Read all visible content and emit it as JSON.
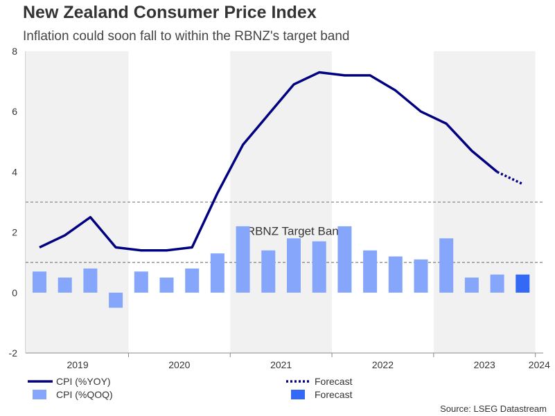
{
  "title": "New Zealand Consumer Price Index",
  "subtitle": "Inflation could soon fall to within the RBNZ's target band",
  "source": "Source: LSEG Datastream",
  "chart_data": {
    "type": "bar+line",
    "quarters": 20,
    "years": [
      "2019",
      "2020",
      "2021",
      "2022",
      "2023",
      "2024"
    ],
    "ylim": [
      -2,
      8
    ],
    "yticks": [
      "8",
      "6",
      "4",
      "2",
      "0",
      "-2"
    ],
    "target_band": {
      "label": "RBNZ Target Band",
      "low": 1,
      "high": 3
    },
    "series": [
      {
        "name": "CPI (%YOY)",
        "type": "line",
        "color": "#000080",
        "values": [
          1.5,
          1.9,
          2.5,
          1.5,
          1.4,
          1.4,
          1.5,
          3.3,
          4.9,
          5.9,
          6.9,
          7.3,
          7.2,
          7.2,
          6.7,
          6.0,
          5.6,
          4.7,
          4.0
        ]
      },
      {
        "name": "Forecast",
        "type": "line-dotted",
        "color": "#000080",
        "values": [
          4.0,
          3.6
        ]
      },
      {
        "name": "CPI (%QOQ)",
        "type": "bar",
        "color": "#86a6fc",
        "values": [
          0.7,
          0.5,
          0.8,
          -0.5,
          0.7,
          0.5,
          0.8,
          1.3,
          2.2,
          1.4,
          1.8,
          1.7,
          2.2,
          1.4,
          1.2,
          1.1,
          1.8,
          0.5,
          0.6
        ]
      },
      {
        "name": "Forecast",
        "type": "bar",
        "color": "#3369f5",
        "values": [
          0.6
        ]
      }
    ],
    "legend": [
      {
        "label": "CPI (%YOY)",
        "kind": "line",
        "color": "#000080"
      },
      {
        "label": "CPI (%QOQ)",
        "kind": "bar",
        "color": "#86a6fc"
      },
      {
        "label": "Forecast",
        "kind": "dotted",
        "color": "#000080"
      },
      {
        "label": "Forecast",
        "kind": "bar",
        "color": "#3369f5"
      }
    ]
  }
}
